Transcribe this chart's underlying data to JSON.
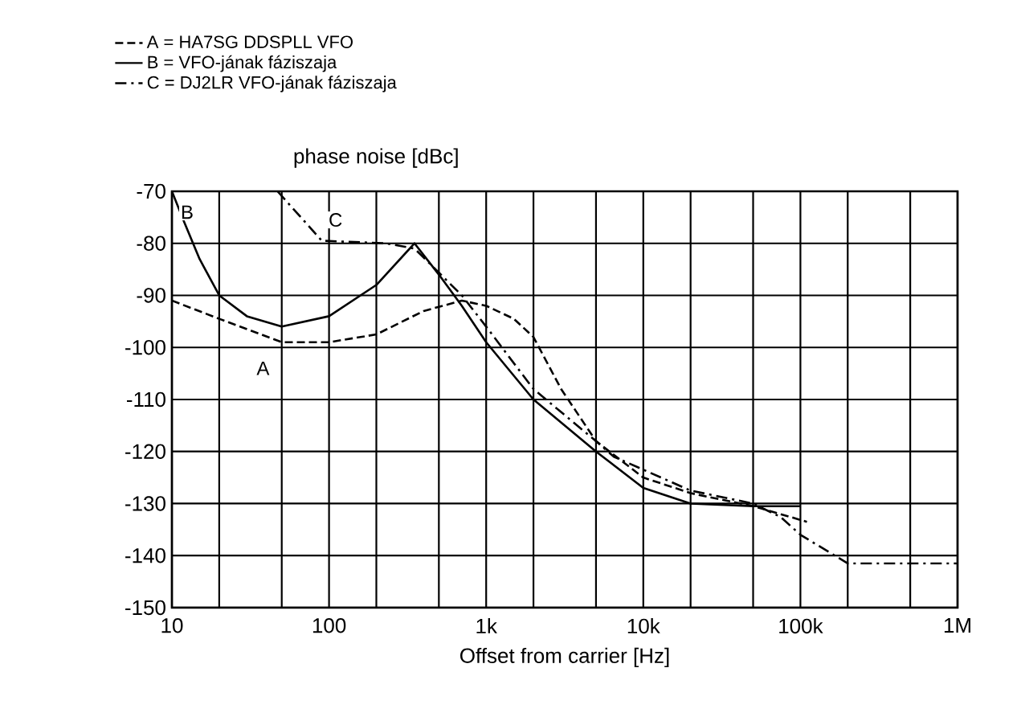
{
  "chart_data": {
    "type": "line",
    "xlabel": "Offset from carrier [Hz]",
    "ylabel": "phase noise [dBc]",
    "log": "x",
    "grid": true,
    "legend": "top left",
    "marker": "none",
    "xlim": [
      10,
      1000000
    ],
    "ylim": [
      -150,
      -70
    ],
    "xticks": [
      10,
      100,
      {
        "value": 1000,
        "label": "1k"
      },
      {
        "value": 10000,
        "label": "10k"
      },
      {
        "value": 100000,
        "label": "100k"
      },
      {
        "value": 1000000,
        "label": "1M"
      }
    ],
    "yticks": [
      -150,
      -140,
      -130,
      -120,
      -110,
      -100,
      -90,
      -80,
      -70
    ],
    "series": [
      {
        "name": "A = HA7SG DDSPLL VFO",
        "color": "#000000",
        "line_style": "dashed",
        "x": [
          10,
          20,
          50,
          100,
          200,
          400,
          700,
          1000,
          1500,
          2000,
          3000,
          5000,
          10000,
          20000,
          50000,
          110000
        ],
        "values": [
          -91,
          -94.5,
          -99,
          -99,
          -97.5,
          -93,
          -91,
          -92,
          -94.5,
          -98,
          -108,
          -118,
          -125,
          -128,
          -130.5,
          -133.5
        ]
      },
      {
        "name": "B = VFO-jának fáziszaja",
        "color": "#000000",
        "line_style": "solid",
        "x": [
          10,
          12,
          15,
          20,
          30,
          50,
          100,
          200,
          350,
          500,
          700,
          1000,
          2000,
          5000,
          10000,
          20000,
          50000,
          100000
        ],
        "values": [
          -70,
          -76,
          -83,
          -90,
          -94,
          -96,
          -94,
          -88,
          -80,
          -86,
          -92,
          -99,
          -110,
          -120,
          -127,
          -130,
          -130.5,
          -130.5
        ]
      },
      {
        "name": "C = DJ2LR VFO-jának fáziszaja",
        "color": "#000000",
        "line_style": "dashdot",
        "x": [
          47,
          90,
          230,
          350,
          700,
          1000,
          2000,
          5000,
          6500,
          20000,
          50000,
          75000,
          100000,
          200000,
          1000000
        ],
        "values": [
          -70,
          -79.5,
          -80,
          -81,
          -90,
          -96,
          -108,
          -118,
          -121,
          -127.5,
          -130,
          -132.6,
          -136,
          -141.5,
          -141.5
        ]
      }
    ],
    "annotations": [
      {
        "text": "A",
        "x": 38,
        "y": -104
      },
      {
        "text": "B",
        "x": 12.5,
        "y": -74
      },
      {
        "text": "C",
        "x": 110,
        "y": -75.5
      }
    ]
  }
}
